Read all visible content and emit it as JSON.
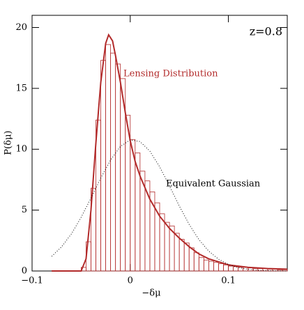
{
  "chart_data": {
    "type": "histogram",
    "xlabel": "−δμ",
    "ylabel": "P(δμ)",
    "annotations": [
      "z=0.8",
      "Lensing Distribution",
      "Equivalent Gaussian"
    ],
    "xlim": [
      -0.1,
      0.16
    ],
    "ylim": [
      0,
      21
    ],
    "xticks": [
      {
        "value": -0.1,
        "label": "−0.1"
      },
      0,
      0.1
    ],
    "yticks": [
      0,
      5,
      10,
      15,
      20
    ],
    "color": "#b22a2a",
    "bins": [
      -0.05,
      -0.045,
      -0.04,
      -0.035,
      -0.03,
      -0.025,
      -0.02,
      -0.015,
      -0.01,
      -0.005,
      0,
      0.005,
      0.01,
      0.015,
      0.02,
      0.025,
      0.03,
      0.035,
      0.04,
      0.045,
      0.05,
      0.055,
      0.06,
      0.065,
      0.07,
      0.075,
      0.08,
      0.085,
      0.09,
      0.095,
      0.1,
      0.105,
      0.11,
      0.115,
      0.12,
      0.125,
      0.13,
      0.135,
      0.14,
      0.145,
      0.15,
      0.155,
      0.16
    ],
    "values": [
      0.3,
      2.4,
      6.8,
      12.4,
      17.3,
      18.6,
      17.9,
      17.0,
      15.8,
      12.8,
      10.8,
      9.7,
      8.2,
      7.4,
      6.5,
      5.6,
      4.7,
      4.0,
      3.7,
      3.1,
      2.6,
      2.3,
      1.9,
      1.5,
      1.1,
      0.9,
      0.8,
      0.7,
      0.6,
      0.5,
      0.4,
      0.35,
      0.3,
      0.3,
      0.25,
      0.2,
      0.2,
      0.2,
      0.15,
      0.15,
      0.1,
      0.1
    ],
    "series": [
      {
        "color": "#b22a2a",
        "style": "solid",
        "x": [
          -0.08,
          -0.05,
          -0.045,
          -0.04,
          -0.035,
          -0.03,
          -0.025,
          -0.022,
          -0.018,
          -0.015,
          -0.01,
          -0.005,
          0,
          0.005,
          0.01,
          0.02,
          0.03,
          0.04,
          0.05,
          0.06,
          0.07,
          0.08,
          0.1,
          0.12,
          0.14,
          0.16
        ],
        "values": [
          0,
          0,
          1,
          5,
          10.5,
          15.5,
          18.7,
          19.4,
          18.9,
          17.7,
          15.5,
          13,
          10.7,
          9,
          7.8,
          5.9,
          4.5,
          3.5,
          2.7,
          2,
          1.4,
          1,
          0.5,
          0.3,
          0.2,
          0.15
        ]
      },
      {
        "color": "#000000",
        "style": "dotted",
        "x": [
          -0.08,
          -0.07,
          -0.06,
          -0.05,
          -0.04,
          -0.03,
          -0.02,
          -0.01,
          0,
          0.01,
          0.02,
          0.03,
          0.04,
          0.05,
          0.06,
          0.07,
          0.08,
          0.09,
          0.1,
          0.11,
          0.12,
          0.13,
          0.14,
          0.15,
          0.16
        ],
        "values": [
          1.2,
          1.98,
          3.04,
          4.41,
          5.99,
          7.63,
          9.12,
          10.23,
          10.77,
          10.63,
          9.85,
          8.56,
          6.98,
          5.34,
          3.83,
          2.58,
          1.63,
          0.97,
          0.54,
          0.28,
          0.14,
          0.06,
          0.03,
          0.01,
          0
        ]
      }
    ]
  }
}
